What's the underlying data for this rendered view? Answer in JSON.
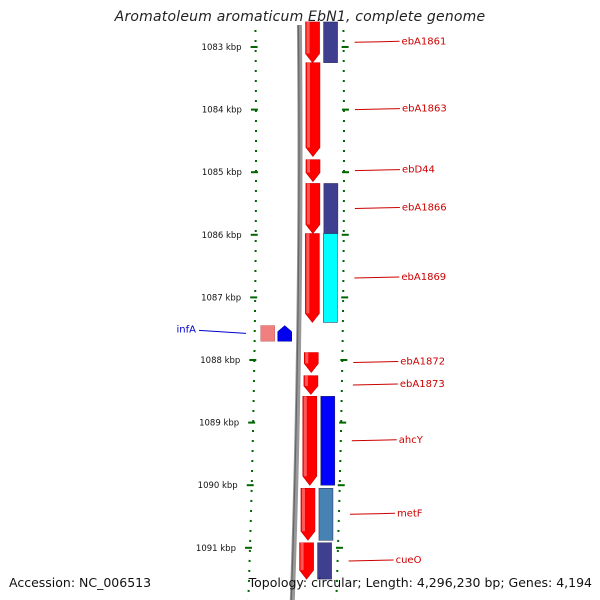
{
  "header": {
    "title": "Aromatoleum aromaticum EbN1, complete genome"
  },
  "footer": {
    "accession": "Accession: NC_006513",
    "topology": "Topology: circular; Length: 4,296,230 bp; Genes: 4,194"
  },
  "colors": {
    "backbone": "#7f7f7f",
    "gene_red": "#ff0000",
    "gene_red_dark": "#cc0000",
    "label_red": "#cc0000",
    "label_blue": "#0000cc",
    "tick_green": "#006600",
    "infA_pink": "#f08080",
    "infA_blue": "#0000ee",
    "cat_navy": "#3f3f8f",
    "cat_cyan": "#00ffff",
    "cat_blue": "#0000ff",
    "cat_steel": "#4682b4"
  },
  "chart_data": {
    "type": "genome-map",
    "scale": {
      "unit": "kbp",
      "ticks": [
        {
          "value": 1083,
          "label": "1083 kbp"
        },
        {
          "value": 1084,
          "label": "1084 kbp"
        },
        {
          "value": 1085,
          "label": "1085 kbp"
        },
        {
          "value": 1086,
          "label": "1086 kbp"
        },
        {
          "value": 1087,
          "label": "1087 kbp"
        },
        {
          "value": 1088,
          "label": "1088 kbp"
        },
        {
          "value": 1089,
          "label": "1089 kbp"
        },
        {
          "value": 1090,
          "label": "1090 kbp"
        },
        {
          "value": 1091,
          "label": "1091 kbp"
        }
      ]
    },
    "genes": [
      {
        "name": "ebA1861",
        "start": 1082.6,
        "end": 1083.25,
        "strand": "-",
        "category_color": "#3f3f8f",
        "label_color": "#cc0000"
      },
      {
        "name": "ebA1863",
        "start": 1083.25,
        "end": 1084.75,
        "strand": "-",
        "category_color": "",
        "label_color": "#cc0000"
      },
      {
        "name": "ebD44",
        "start": 1084.8,
        "end": 1085.15,
        "strand": "-",
        "category_color": "",
        "label_color": "#cc0000"
      },
      {
        "name": "ebA1866",
        "start": 1085.18,
        "end": 1085.98,
        "strand": "-",
        "category_color": "#3f3f8f",
        "label_color": "#cc0000"
      },
      {
        "name": "ebA1869",
        "start": 1085.98,
        "end": 1087.4,
        "strand": "-",
        "category_color": "#00ffff",
        "label_color": "#cc0000"
      },
      {
        "name": "infA",
        "start": 1087.45,
        "end": 1087.7,
        "strand": "+",
        "category_color": "#0000ee",
        "label_color": "#0000cc"
      },
      {
        "name": "ebA1872",
        "start": 1087.88,
        "end": 1088.2,
        "strand": "-",
        "category_color": "",
        "label_color": "#cc0000"
      },
      {
        "name": "ebA1873",
        "start": 1088.25,
        "end": 1088.55,
        "strand": "-",
        "category_color": "",
        "label_color": "#cc0000"
      },
      {
        "name": "ahcY",
        "start": 1088.58,
        "end": 1090.0,
        "strand": "-",
        "category_color": "#0000ff",
        "label_color": "#cc0000"
      },
      {
        "name": "metF",
        "start": 1090.05,
        "end": 1090.88,
        "strand": "-",
        "category_color": "#4682b4",
        "label_color": "#cc0000"
      },
      {
        "name": "cueO",
        "start": 1090.92,
        "end": 1091.5,
        "strand": "-",
        "category_color": "#3f3f8f",
        "label_color": "#cc0000"
      }
    ]
  }
}
